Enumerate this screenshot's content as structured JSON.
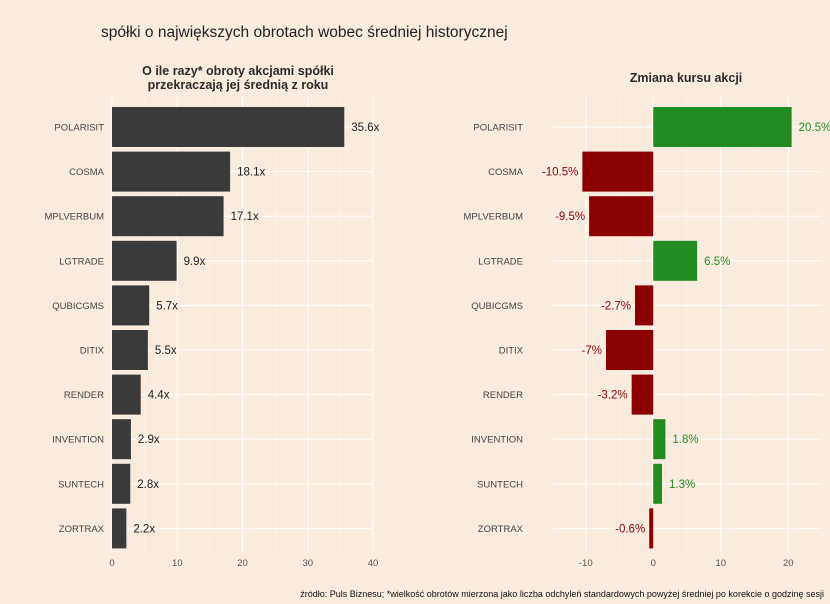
{
  "title": "spółki o największych obrotach wobec średniej historycznej",
  "caption": "źródło: Puls Biznesu; *wielkość obrotów mierzona jako liczba odchyleń standardowych powyżej średniej po korekcie o godzinę sesji",
  "colors": {
    "background": "#faebdf",
    "grid": "#ffffff",
    "bar_dark": "#3a3a3a",
    "positive": "#228b22",
    "negative": "#8b0000",
    "label_dark": "#222222"
  },
  "chart_data": [
    {
      "type": "bar",
      "orientation": "horizontal",
      "title": "O ile razy* obroty akcjami spółki\nprzekraczają jej średnią z roku",
      "categories": [
        "POLARISIT",
        "COSMA",
        "MPLVERBUM",
        "LGTRADE",
        "QUBICGMS",
        "DITIX",
        "RENDER",
        "INVENTION",
        "SUNTECH",
        "ZORTRAX"
      ],
      "values": [
        35.6,
        18.1,
        17.1,
        9.9,
        5.7,
        5.5,
        4.4,
        2.9,
        2.8,
        2.2
      ],
      "value_labels": [
        "35.6x",
        "18.1x",
        "17.1x",
        "9.9x",
        "5.7x",
        "5.5x",
        "4.4x",
        "2.9x",
        "2.8x",
        "2.2x"
      ],
      "xlim": [
        0,
        40
      ],
      "xticks": [
        0,
        10,
        20,
        30,
        40
      ],
      "grid": true
    },
    {
      "type": "bar",
      "orientation": "horizontal",
      "title": "Zmiana kursu akcji",
      "categories": [
        "POLARISIT",
        "COSMA",
        "MPLVERBUM",
        "LGTRADE",
        "QUBICGMS",
        "DITIX",
        "RENDER",
        "INVENTION",
        "SUNTECH",
        "ZORTRAX"
      ],
      "values": [
        20.5,
        -10.5,
        -9.5,
        6.5,
        -2.7,
        -7,
        -3.2,
        1.8,
        1.3,
        -0.6
      ],
      "value_labels": [
        "20.5%",
        "-10.5%",
        "-9.5%",
        "6.5%",
        "-2.7%",
        "-7%",
        "-3.2%",
        "1.8%",
        "1.3%",
        "-0.6%"
      ],
      "xlim": [
        -15,
        25
      ],
      "xticks": [
        -10,
        0,
        10,
        20
      ],
      "grid": true
    }
  ]
}
